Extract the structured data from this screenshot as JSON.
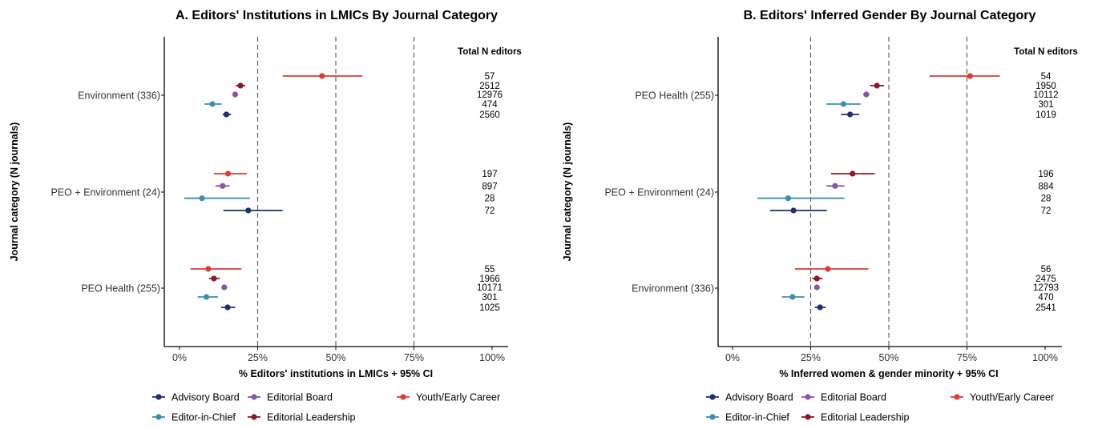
{
  "colors": {
    "Advisory Board": "#1b2f73",
    "Editor-in-Chief": "#3a8fae",
    "Editorial Board": "#8a55a8",
    "Editorial Leadership": "#8b1a24",
    "Youth/Early Career": "#dd3a35"
  },
  "legend": {
    "items": [
      "Advisory Board",
      "Editorial Board",
      "Youth/Early Career",
      "Editor-in-Chief",
      "Editorial Leadership"
    ]
  },
  "chart_data": [
    {
      "type": "scatter",
      "title": "A.  Editors' Institutions in LMICs By Journal Category",
      "xlabel": "% Editors' institutions in LMICs + 95% CI",
      "ylabel": "Journal category (N journals)",
      "xlim": [
        0,
        100
      ],
      "xticks": [
        "0%",
        "25%",
        "50%",
        "75%",
        "100%"
      ],
      "reference_lines": [
        25,
        50,
        75
      ],
      "n_header": "Total N editors",
      "categories": [
        {
          "label": "Environment (336)",
          "points": [
            {
              "series": "Youth/Early Career",
              "value": 45.6,
              "low": 33.0,
              "high": 58.5,
              "n": "57"
            },
            {
              "series": "Editorial Leadership",
              "value": 19.5,
              "low": 18.0,
              "high": 21.0,
              "n": "2512"
            },
            {
              "series": "Editorial Board",
              "value": 17.8,
              "low": 17.2,
              "high": 18.4,
              "n": "12976"
            },
            {
              "series": "Editor-in-Chief",
              "value": 10.5,
              "low": 8.0,
              "high": 13.5,
              "n": "474"
            },
            {
              "series": "Advisory Board",
              "value": 15.0,
              "low": 13.8,
              "high": 16.5,
              "n": "2560"
            }
          ]
        },
        {
          "label": "PEO + Environment (24)",
          "points": [
            {
              "series": "Youth/Early Career",
              "value": 15.5,
              "low": 11.0,
              "high": 21.5,
              "n": "197"
            },
            {
              "series": "Editorial Board",
              "value": 13.8,
              "low": 11.5,
              "high": 16.0,
              "n": "897"
            },
            {
              "series": "Editor-in-Chief",
              "value": 7.2,
              "low": 1.5,
              "high": 22.5,
              "n": "28"
            },
            {
              "series": "Advisory Board",
              "value": 22.0,
              "low": 14.0,
              "high": 33.0,
              "n": "72"
            }
          ]
        },
        {
          "label": "PEO Health (255)",
          "points": [
            {
              "series": "Youth/Early Career",
              "value": 9.2,
              "low": 3.5,
              "high": 19.8,
              "n": "55"
            },
            {
              "series": "Editorial Leadership",
              "value": 11.0,
              "low": 9.5,
              "high": 12.8,
              "n": "1966"
            },
            {
              "series": "Editorial Board",
              "value": 14.3,
              "low": 13.6,
              "high": 15.0,
              "n": "10171"
            },
            {
              "series": "Editor-in-Chief",
              "value": 8.6,
              "low": 5.8,
              "high": 12.3,
              "n": "301"
            },
            {
              "series": "Advisory Board",
              "value": 15.4,
              "low": 13.3,
              "high": 17.8,
              "n": "1025"
            }
          ]
        }
      ]
    },
    {
      "type": "scatter",
      "title": "B.  Editors' Inferred Gender By Journal Category",
      "xlabel": "% Inferred women & gender minority + 95% CI",
      "ylabel": "Journal category (N journals)",
      "xlim": [
        0,
        100
      ],
      "xticks": [
        "0%",
        "25%",
        "50%",
        "75%",
        "100%"
      ],
      "reference_lines": [
        25,
        50,
        75
      ],
      "n_header": "Total N editors",
      "categories": [
        {
          "label": "PEO Health (255)",
          "points": [
            {
              "series": "Youth/Early Career",
              "value": 76.0,
              "low": 63.0,
              "high": 85.5,
              "n": "54"
            },
            {
              "series": "Editorial Leadership",
              "value": 46.2,
              "low": 44.0,
              "high": 48.5,
              "n": "1950"
            },
            {
              "series": "Editorial Board",
              "value": 42.8,
              "low": 41.8,
              "high": 43.8,
              "n": "10112"
            },
            {
              "series": "Editor-in-Chief",
              "value": 35.5,
              "low": 30.0,
              "high": 41.0,
              "n": "301"
            },
            {
              "series": "Advisory Board",
              "value": 37.6,
              "low": 34.7,
              "high": 40.5,
              "n": "1019"
            }
          ]
        },
        {
          "label": "PEO + Environment (24)",
          "points": [
            {
              "series": "Editorial Leadership",
              "value": 38.4,
              "low": 31.5,
              "high": 45.5,
              "n": "196"
            },
            {
              "series": "Editorial Board",
              "value": 32.8,
              "low": 30.0,
              "high": 35.8,
              "n": "884"
            },
            {
              "series": "Editor-in-Chief",
              "value": 17.8,
              "low": 8.0,
              "high": 35.8,
              "n": "28"
            },
            {
              "series": "Advisory Board",
              "value": 19.5,
              "low": 12.0,
              "high": 30.2,
              "n": "72"
            }
          ]
        },
        {
          "label": "Environment (336)",
          "points": [
            {
              "series": "Youth/Early Career",
              "value": 30.5,
              "low": 20.0,
              "high": 43.5,
              "n": "56"
            },
            {
              "series": "Editorial Leadership",
              "value": 27.0,
              "low": 25.5,
              "high": 28.8,
              "n": "2475"
            },
            {
              "series": "Editorial Board",
              "value": 27.0,
              "low": 26.3,
              "high": 27.8,
              "n": "12793"
            },
            {
              "series": "Editor-in-Chief",
              "value": 19.2,
              "low": 15.8,
              "high": 23.0,
              "n": "470"
            },
            {
              "series": "Advisory Board",
              "value": 28.0,
              "low": 26.3,
              "high": 29.8,
              "n": "2541"
            }
          ]
        }
      ]
    }
  ]
}
